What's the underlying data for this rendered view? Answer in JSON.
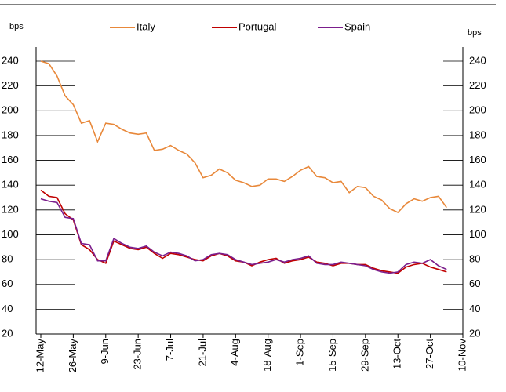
{
  "chart_data": {
    "type": "line",
    "ylabel": "bps",
    "y2label": "bps",
    "categories": [
      "12-May",
      null,
      null,
      null,
      "26-May",
      null,
      null,
      null,
      "9-Jun",
      null,
      null,
      null,
      "23-Jun",
      null,
      null,
      null,
      "7-Jul",
      null,
      null,
      null,
      "21-Jul",
      null,
      null,
      null,
      "4-Aug",
      null,
      null,
      null,
      "18-Aug",
      null,
      null,
      null,
      "1-Sep",
      null,
      null,
      null,
      "15-Sep",
      null,
      null,
      null,
      "29-Sep",
      null,
      null,
      null,
      "13-Oct",
      null,
      null,
      null,
      "27-Oct",
      null,
      null,
      null,
      "10-Nov"
    ],
    "series": [
      {
        "name": "Italy",
        "color": "#e8883a",
        "values": [
          240,
          238,
          228,
          212,
          205,
          190,
          192,
          175,
          190,
          189,
          185,
          182,
          181,
          182,
          168,
          169,
          172,
          168,
          165,
          158,
          146,
          148,
          153,
          150,
          144,
          142,
          139,
          140,
          145,
          145,
          143,
          147,
          152,
          155,
          147,
          146,
          142,
          143,
          134,
          139,
          138,
          131,
          128,
          121,
          118,
          125,
          129,
          127,
          130,
          131,
          122,
          null,
          null
        ]
      },
      {
        "name": "Portugal",
        "color": "#c00000",
        "values": [
          136,
          131,
          130,
          117,
          112,
          92,
          88,
          80,
          77,
          95,
          92,
          89,
          88,
          90,
          85,
          81,
          85,
          84,
          82,
          80,
          79,
          83,
          85,
          83,
          79,
          78,
          75,
          78,
          80,
          81,
          77,
          79,
          80,
          82,
          78,
          77,
          75,
          77,
          77,
          76,
          76,
          73,
          71,
          70,
          69,
          74,
          76,
          77,
          74,
          72,
          70,
          null,
          null
        ]
      },
      {
        "name": "Spain",
        "color": "#7b1e8c",
        "values": [
          129,
          127,
          126,
          114,
          113,
          93,
          92,
          79,
          79,
          97,
          93,
          90,
          89,
          91,
          86,
          83,
          86,
          85,
          83,
          79,
          80,
          84,
          85,
          84,
          80,
          78,
          76,
          77,
          78,
          80,
          78,
          80,
          81,
          83,
          77,
          76,
          76,
          78,
          77,
          76,
          75,
          72,
          70,
          69,
          70,
          76,
          78,
          77,
          80,
          75,
          72,
          null,
          null
        ]
      }
    ],
    "ylim": [
      20,
      240
    ],
    "yticks": [
      20,
      40,
      60,
      80,
      100,
      120,
      140,
      160,
      180,
      200,
      220,
      240
    ],
    "y2lim": [
      20,
      240
    ],
    "y2ticks": [
      20,
      40,
      60,
      80,
      100,
      120,
      140,
      160,
      180,
      200,
      220,
      240
    ],
    "legend": "top"
  }
}
